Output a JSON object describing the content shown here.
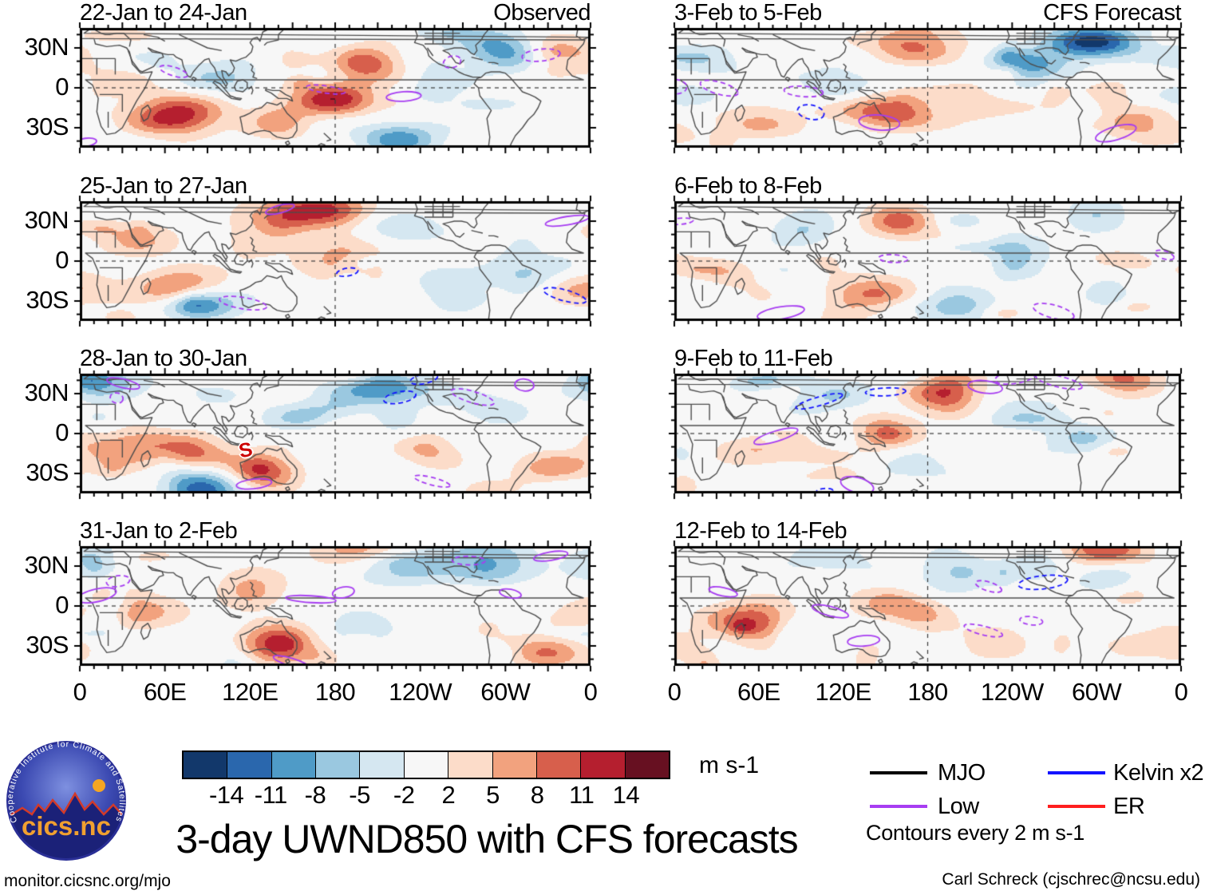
{
  "figure": {
    "main_title": "3-day UWND850 with CFS forecasts",
    "site_url": "monitor.cicsnc.org/mjo",
    "attribution": "Carl Schreck (cjschrec@ncsu.edu)"
  },
  "logo": {
    "name": "CICS-NC",
    "center_text": "cics.nc",
    "ring_text": "Cooperative Institute for Climate and Satellites"
  },
  "axes": {
    "x_tick_labels": [
      "0",
      "60E",
      "120E",
      "180",
      "120W",
      "60W",
      "0"
    ],
    "y_tick_labels": [
      "30N",
      "0",
      "30S"
    ]
  },
  "colorbar": {
    "tick_labels": [
      "-14",
      "-11",
      "-8",
      "-5",
      "-2",
      "2",
      "5",
      "8",
      "11",
      "14"
    ],
    "unit": "m s-1",
    "colors": [
      "#12386b",
      "#2a67ad",
      "#4f9bc7",
      "#9ac8e0",
      "#d5e7f1",
      "#f7f7f7",
      "#fcdcc9",
      "#f2a27e",
      "#d75f4c",
      "#b51f2f",
      "#671021"
    ]
  },
  "legend": {
    "entries": [
      {
        "label": "MJO",
        "color": "#000000"
      },
      {
        "label": "Low",
        "color": "#a73df2"
      },
      {
        "label": "Kelvin x2",
        "color": "#1414ff"
      },
      {
        "label": "ER",
        "color": "#ff1e1e"
      }
    ],
    "note": "Contours every 2 m s-1"
  },
  "chart_data": {
    "type": "heatmap",
    "variable": "UWND850 zonal wind anomaly",
    "units": "m s-1",
    "lon_domain": [
      0,
      360
    ],
    "lat_domain": [
      -45,
      45
    ],
    "color_levels": [
      -14,
      -11,
      -8,
      -5,
      -2,
      2,
      5,
      8,
      11,
      14
    ],
    "contour_interval": "Contours every 2 m s-1",
    "column_headers": [
      "Observed",
      "CFS Forecast"
    ],
    "overlay_waves": [
      "MJO",
      "Low",
      "Kelvin x2",
      "ER"
    ],
    "panels": [
      {
        "title": "22-Jan to 24-Jan",
        "corner_label": "Observed",
        "column": 0,
        "row": 0,
        "seed": 11,
        "anomaly_centers": [
          [
            68,
            -20,
            13
          ],
          [
            178,
            -8,
            13
          ],
          [
            208,
            18,
            8
          ],
          [
            225,
            -38,
            -10
          ],
          [
            296,
            30,
            -9
          ],
          [
            100,
            8,
            -5
          ],
          [
            335,
            25,
            9
          ],
          [
            250,
            0,
            -4
          ],
          [
            140,
            -25,
            6
          ],
          [
            20,
            5,
            3
          ]
        ]
      },
      {
        "title": "3-Feb to 5-Feb",
        "corner_label": "CFS Forecast",
        "column": 1,
        "row": 0,
        "seed": 22,
        "anomaly_centers": [
          [
            297,
            34,
            -15
          ],
          [
            152,
            -18,
            12
          ],
          [
            170,
            33,
            9
          ],
          [
            255,
            15,
            -7
          ],
          [
            330,
            -28,
            7
          ],
          [
            115,
            5,
            -5
          ],
          [
            60,
            -25,
            5
          ],
          [
            210,
            -10,
            4
          ],
          [
            20,
            20,
            -4
          ]
        ]
      },
      {
        "title": "25-Jan to 27-Jan",
        "corner_label": "",
        "column": 0,
        "row": 1,
        "seed": 33,
        "anomaly_centers": [
          [
            172,
            38,
            13
          ],
          [
            82,
            -33,
            -15
          ],
          [
            72,
            -22,
            12
          ],
          [
            185,
            0,
            7
          ],
          [
            140,
            28,
            6
          ],
          [
            40,
            15,
            5
          ],
          [
            260,
            -15,
            -4
          ],
          [
            310,
            -8,
            -5
          ],
          [
            225,
            25,
            -5
          ],
          [
            350,
            -20,
            6
          ]
        ]
      },
      {
        "title": "6-Feb to 8-Feb",
        "corner_label": "",
        "column": 1,
        "row": 1,
        "seed": 44,
        "anomaly_centers": [
          [
            160,
            30,
            9
          ],
          [
            140,
            -25,
            8
          ],
          [
            240,
            8,
            -5
          ],
          [
            90,
            22,
            -5
          ],
          [
            200,
            -35,
            -6
          ],
          [
            40,
            -8,
            4
          ],
          [
            300,
            35,
            -4
          ],
          [
            330,
            0,
            3
          ]
        ]
      },
      {
        "title": "28-Jan to 30-Jan",
        "corner_label": "",
        "column": 0,
        "row": 2,
        "seed": 55,
        "anomaly_centers": [
          [
            75,
            -15,
            10
          ],
          [
            85,
            -42,
            -13
          ],
          [
            130,
            -28,
            11
          ],
          [
            215,
            35,
            -12
          ],
          [
            25,
            -8,
            7
          ],
          [
            12,
            40,
            -8
          ],
          [
            160,
            12,
            -5
          ],
          [
            245,
            -12,
            6
          ],
          [
            330,
            -25,
            7
          ],
          [
            290,
            20,
            -4
          ]
        ],
        "storm_marker": {
          "symbol": "S",
          "lon": 117,
          "lat": -14,
          "color": "#cc0000"
        }
      },
      {
        "title": "9-Feb to 11-Feb",
        "corner_label": "",
        "column": 1,
        "row": 2,
        "seed": 66,
        "anomaly_centers": [
          [
            192,
            32,
            13
          ],
          [
            150,
            0,
            9
          ],
          [
            320,
            42,
            9
          ],
          [
            250,
            15,
            -6
          ],
          [
            110,
            28,
            -5
          ],
          [
            60,
            -10,
            5
          ],
          [
            170,
            -30,
            -5
          ],
          [
            290,
            -5,
            -4
          ]
        ]
      },
      {
        "title": "31-Jan to 2-Feb",
        "corner_label": "",
        "column": 0,
        "row": 3,
        "seed": 77,
        "anomaly_centers": [
          [
            140,
            -28,
            12
          ],
          [
            230,
            30,
            -9
          ],
          [
            288,
            33,
            -8
          ],
          [
            40,
            -5,
            6
          ],
          [
            120,
            10,
            6
          ],
          [
            330,
            -35,
            9
          ],
          [
            200,
            -15,
            -5
          ],
          [
            195,
            42,
            6
          ],
          [
            8,
            35,
            -5
          ]
        ]
      },
      {
        "title": "12-Feb to 14-Feb",
        "corner_label": "",
        "column": 1,
        "row": 3,
        "seed": 88,
        "anomaly_centers": [
          [
            58,
            -12,
            11
          ],
          [
            160,
            0,
            8
          ],
          [
            305,
            42,
            10
          ],
          [
            200,
            25,
            -6
          ],
          [
            260,
            30,
            -5
          ],
          [
            345,
            -30,
            6
          ],
          [
            110,
            35,
            -4
          ],
          [
            230,
            -25,
            4
          ]
        ]
      }
    ]
  }
}
